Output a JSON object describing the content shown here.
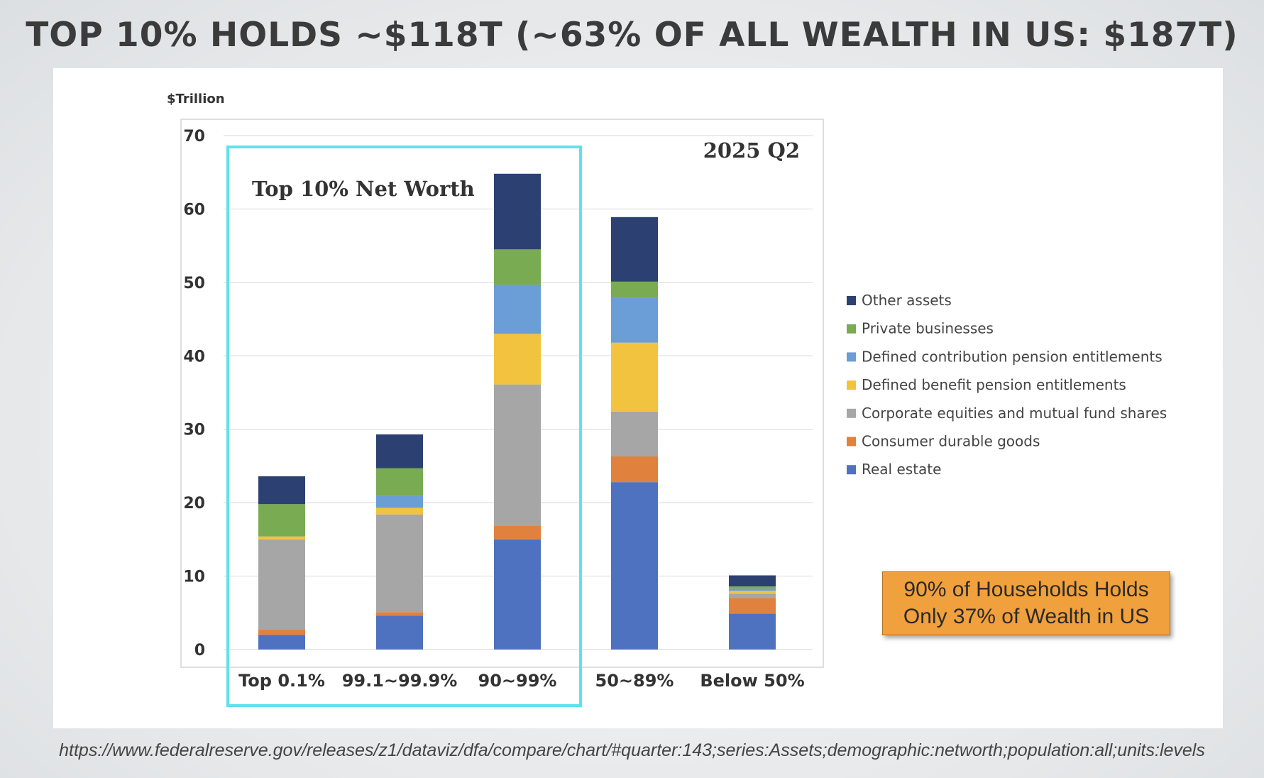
{
  "slide": {
    "title": "TOP 10% HOLDS ~$118T (~63% OF ALL WEALTH IN US: $187T)",
    "callout_line1": "90% of Households Holds",
    "callout_line2": "Only 37% of Wealth in US",
    "source": "https://www.federalreserve.gov/releases/z1/dataviz/dfa/compare/chart/#quarter:143;series:Assets;demographic:networth;population:all;units:levels"
  },
  "chart_data": {
    "type": "bar",
    "stacked": true,
    "ylabel": "$Trillion",
    "ylim": [
      0,
      70
    ],
    "yticks": [
      0,
      10,
      20,
      30,
      40,
      50,
      60,
      70
    ],
    "grid": true,
    "legend_position": "right",
    "categories": [
      "Top 0.1%",
      "99.1~99.9%",
      "90~99%",
      "50~89%",
      "Below 50%"
    ],
    "annotations": {
      "period": "2025 Q2",
      "highlight_label": "Top 10% Net Worth",
      "highlight_categories": [
        "Top 0.1%",
        "99.1~99.9%",
        "90~99%"
      ]
    },
    "series": [
      {
        "name": "Real estate",
        "color": "#4f72c0",
        "values": [
          2.0,
          4.6,
          15.0,
          22.8,
          4.9
        ]
      },
      {
        "name": "Consumer durable goods",
        "color": "#e0813e",
        "values": [
          0.7,
          0.5,
          1.9,
          3.5,
          2.1
        ]
      },
      {
        "name": "Corporate equities and mutual fund shares",
        "color": "#a6a6a6",
        "values": [
          12.3,
          13.3,
          19.2,
          6.1,
          0.6
        ]
      },
      {
        "name": "Defined benefit pension entitlements",
        "color": "#f1c33e",
        "values": [
          0.4,
          0.9,
          6.9,
          9.4,
          0.4
        ]
      },
      {
        "name": "Defined contribution pension entitlements",
        "color": "#6b9dd6",
        "values": [
          0.0,
          1.6,
          6.7,
          6.1,
          0.3
        ]
      },
      {
        "name": "Private businesses",
        "color": "#79ab52",
        "values": [
          4.4,
          3.8,
          4.8,
          2.2,
          0.3
        ]
      },
      {
        "name": "Other assets",
        "color": "#2c4172",
        "values": [
          3.8,
          4.6,
          10.3,
          8.8,
          1.5
        ]
      }
    ]
  }
}
